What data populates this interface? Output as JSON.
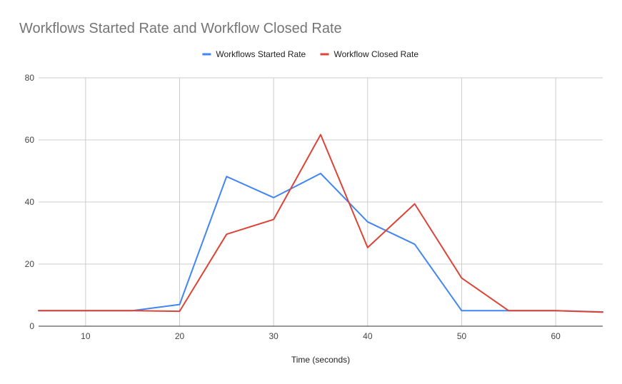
{
  "chart_data": {
    "type": "line",
    "title": "Workflows Started Rate and Workflow Closed Rate",
    "xlabel": "Time (seconds)",
    "ylabel": "",
    "xlim": [
      5,
      65
    ],
    "ylim": [
      0,
      80
    ],
    "x_ticks": [
      10,
      20,
      30,
      40,
      50,
      60
    ],
    "y_ticks": [
      0,
      20,
      40,
      60,
      80
    ],
    "grid": true,
    "legend_position": "top",
    "x": [
      5,
      10,
      15,
      20,
      25,
      30,
      35,
      40,
      45,
      50,
      55,
      60,
      65
    ],
    "series": [
      {
        "name": "Workflows Started Rate",
        "color": "#4285f4",
        "values": [
          5,
          5,
          5,
          7,
          48.2,
          41.4,
          49.2,
          33.6,
          26.4,
          5,
          5,
          5,
          4.6
        ]
      },
      {
        "name": "Workflow Closed Rate",
        "color": "#db4437",
        "values": [
          5,
          5,
          5,
          4.8,
          29.6,
          34.4,
          61.7,
          25.3,
          39.4,
          15.5,
          5,
          5,
          4.5
        ]
      }
    ]
  }
}
